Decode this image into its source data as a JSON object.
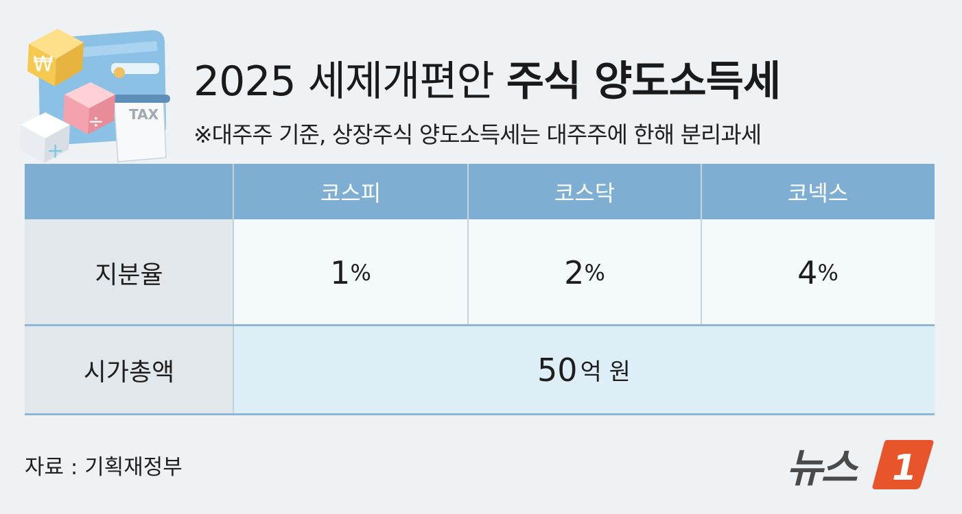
{
  "title": {
    "light": "2025 세제개편안",
    "bold": "주식 양도소득세"
  },
  "subtitle": "※대주주 기준, 상장주식 양도소득세는 대주주에 한해 분리과세",
  "illustration": {
    "label": "TAX",
    "icons": [
      "won-icon",
      "plus-icon",
      "divide-icon"
    ]
  },
  "table": {
    "columns": [
      "코스피",
      "코스닥",
      "코넥스"
    ],
    "rows": [
      {
        "label": "지분율",
        "values": [
          {
            "num": "1",
            "unit": "%"
          },
          {
            "num": "2",
            "unit": "%"
          },
          {
            "num": "4",
            "unit": "%"
          }
        ]
      },
      {
        "label": "시가총액",
        "merged": {
          "num": "50",
          "unit": "억 원"
        }
      }
    ]
  },
  "source": "자료 : 기획재정부",
  "logo": {
    "text": "뉴스",
    "mark": "1"
  },
  "colors": {
    "header": "#7eafd3",
    "logo_orange": "#e8552a",
    "row_label": "#e2e7ec",
    "merged_row": "#ddeef7"
  }
}
